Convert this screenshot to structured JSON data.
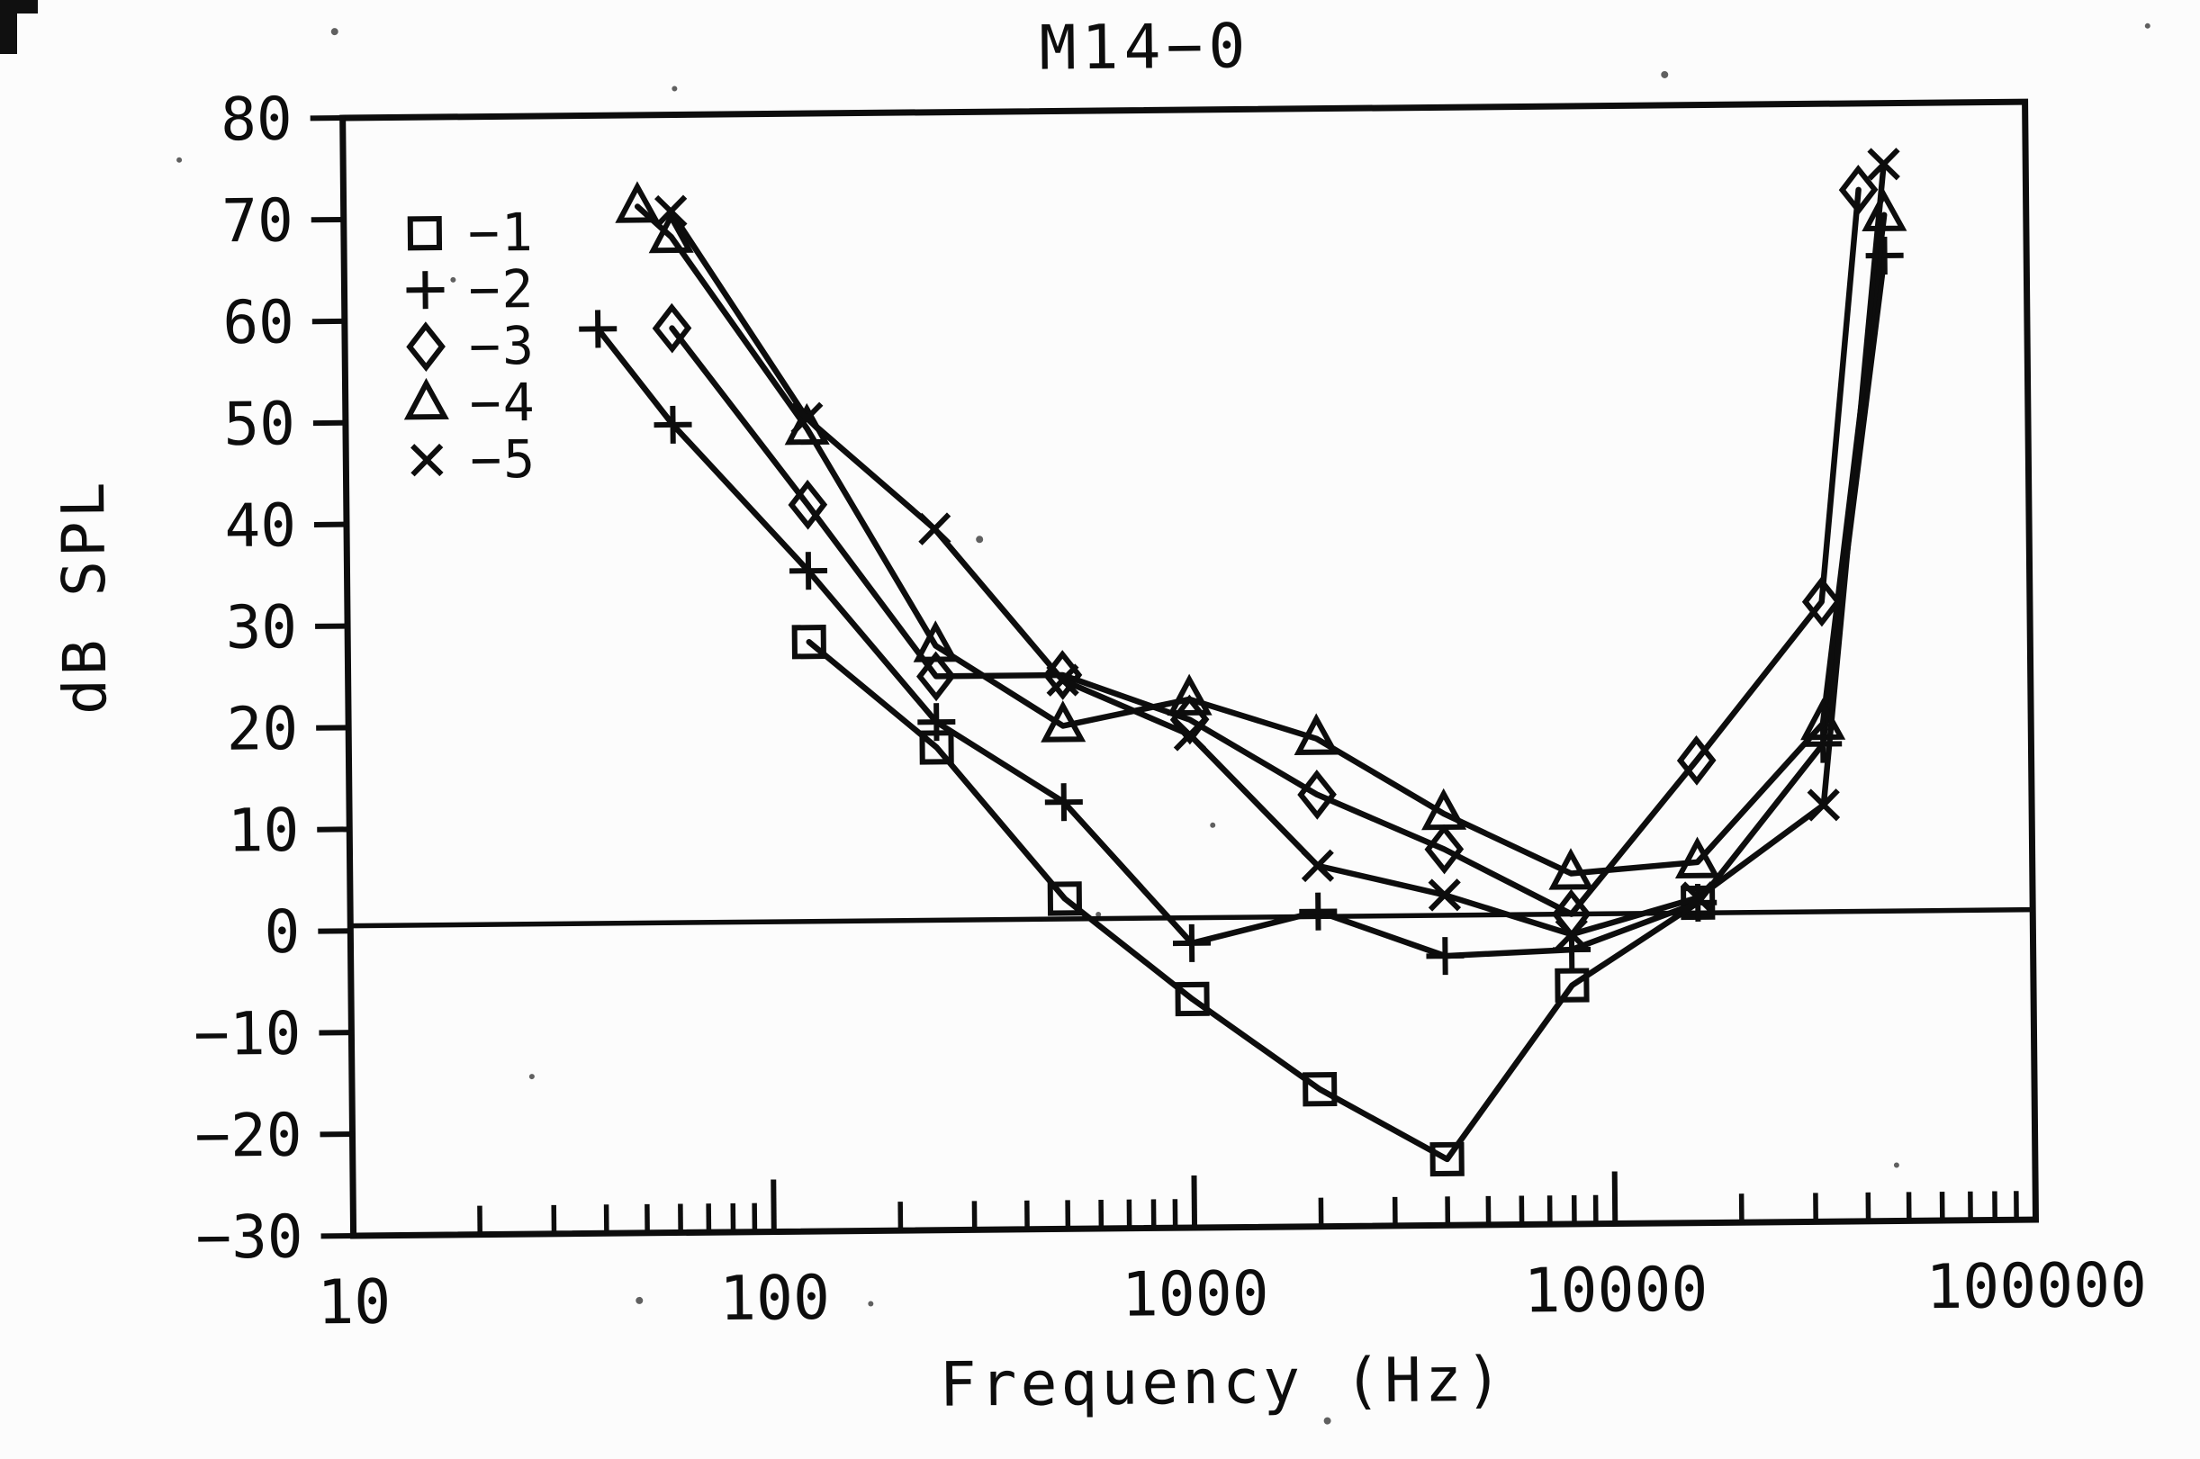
{
  "chart_data": {
    "type": "line",
    "title": "M14−0",
    "xlabel": "Frequency (Hz)",
    "ylabel": "dB SPL",
    "x_scale": "log10",
    "xlim": [
      10,
      100000
    ],
    "ylim": [
      -30,
      80
    ],
    "x_tick_values": [
      10,
      100,
      1000,
      10000,
      100000
    ],
    "x_tick_labels": [
      "10",
      "100",
      "1000",
      "10000",
      "100000"
    ],
    "y_tick_values": [
      80,
      70,
      60,
      50,
      40,
      30,
      20,
      10,
      0,
      -10,
      -20,
      -30
    ],
    "y_tick_labels": [
      "80",
      "70",
      "60",
      "50",
      "40",
      "30",
      "20",
      "10",
      "0",
      "−10",
      "−20",
      "−30"
    ],
    "grid": false,
    "reference_line_db": 0.5,
    "legend_position": "top-left-inside",
    "series": [
      {
        "name": "−1",
        "marker": "square",
        "points": [
          [
            125,
            28
          ],
          [
            250,
            17.5
          ],
          [
            500,
            2.5
          ],
          [
            1000,
            -7.5
          ],
          [
            2000,
            -16.5
          ],
          [
            4000,
            -23.5
          ],
          [
            8000,
            -6.5
          ],
          [
            16000,
            1.5
          ]
        ]
      },
      {
        "name": "−2",
        "marker": "plus",
        "points": [
          [
            40,
            59
          ],
          [
            60,
            49.5
          ],
          [
            125,
            35
          ],
          [
            250,
            20
          ],
          [
            500,
            12
          ],
          [
            1000,
            -2
          ],
          [
            2000,
            1
          ],
          [
            4000,
            -3.5
          ],
          [
            8000,
            -3
          ],
          [
            16000,
            1.5
          ],
          [
            32000,
            17
          ],
          [
            46000,
            65
          ]
        ]
      },
      {
        "name": "−3",
        "marker": "diamond",
        "points": [
          [
            60,
            59
          ],
          [
            125,
            41.5
          ],
          [
            250,
            24.5
          ],
          [
            500,
            24.5
          ],
          [
            1000,
            20
          ],
          [
            2000,
            12.5
          ],
          [
            4000,
            7
          ],
          [
            8000,
            0.5
          ],
          [
            16000,
            15.5
          ],
          [
            32000,
            31
          ],
          [
            40000,
            71.5
          ]
        ]
      },
      {
        "name": "−4",
        "marker": "triangle",
        "points": [
          [
            50,
            71
          ],
          [
            60,
            68
          ],
          [
            125,
            49
          ],
          [
            250,
            27.5
          ],
          [
            500,
            19.5
          ],
          [
            1000,
            22
          ],
          [
            2000,
            18
          ],
          [
            4000,
            10.5
          ],
          [
            8000,
            4.5
          ],
          [
            16000,
            5.5
          ],
          [
            32000,
            19
          ],
          [
            46000,
            69
          ]
        ]
      },
      {
        "name": "−5",
        "marker": "x",
        "points": [
          [
            60,
            70.5
          ],
          [
            125,
            50
          ],
          [
            250,
            39
          ],
          [
            500,
            24
          ],
          [
            1000,
            18.5
          ],
          [
            2000,
            5.5
          ],
          [
            4000,
            2.5
          ],
          [
            8000,
            -1.5
          ],
          [
            16000,
            2
          ],
          [
            32000,
            11
          ],
          [
            46000,
            74
          ]
        ]
      }
    ]
  }
}
